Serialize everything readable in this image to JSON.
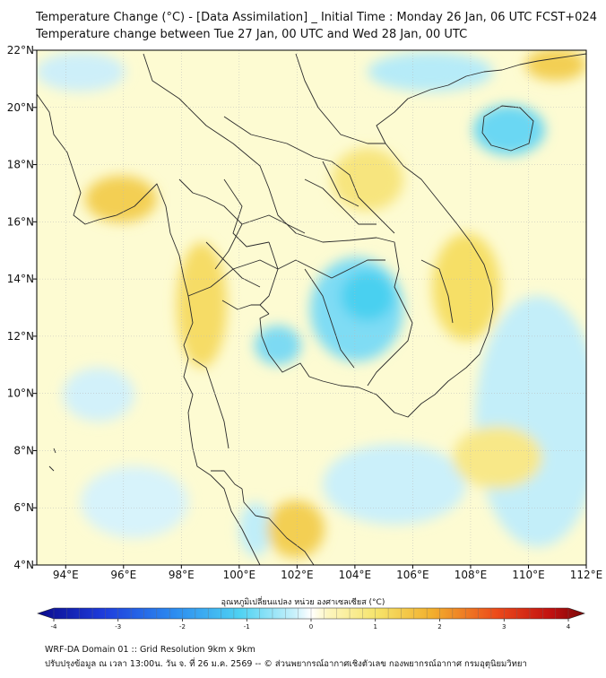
{
  "header": {
    "title": "Temperature Change (°C) - [Data Assimilation] _ Initial Time : Monday 26 Jan, 06 UTC FCST+024",
    "subtitle": "Temperature change between Tue 27 Jan, 00 UTC and Wed 28 Jan, 00 UTC"
  },
  "map": {
    "lon_range": [
      93,
      112
    ],
    "lat_range": [
      4,
      22
    ],
    "lon_ticks": [
      "94°E",
      "96°E",
      "98°E",
      "100°E",
      "102°E",
      "104°E",
      "106°E",
      "108°E",
      "110°E",
      "112°E"
    ],
    "lat_ticks": [
      "4°N",
      "6°N",
      "8°N",
      "10°N",
      "12°N",
      "14°N",
      "16°N",
      "18°N",
      "20°N",
      "22°N"
    ],
    "background_color": "#fdfbd2",
    "colors": {
      "warm_light": "#fbf4a8",
      "warm": "#f6e06a",
      "warm_strong": "#f3c94a",
      "cool_light": "#dff4fb",
      "cool": "#9fe3f5",
      "cool_strong": "#56d4f2"
    }
  },
  "colorbar": {
    "label": "อุณหภูมิเปลี่ยนแปลง หน่วย องศาเซลเซียส (°C)",
    "ticks": [
      "-4",
      "-3",
      "-2",
      "-1",
      "0",
      "1",
      "2",
      "3",
      "4"
    ],
    "range": [
      -4,
      4
    ]
  },
  "footer": {
    "line1": "WRF-DA Domain 01 :: Grid Resolution 9km x 9km",
    "line2": "ปรับปรุงข้อมูล ณ เวลา 13:00น. วัน จ. ที่ 26 ม.ค. 2569 -- © ส่วนพยากรณ์อากาศเชิงตัวเลข กองพยากรณ์อากาศ กรมอุตุนิยมวิทยา"
  }
}
